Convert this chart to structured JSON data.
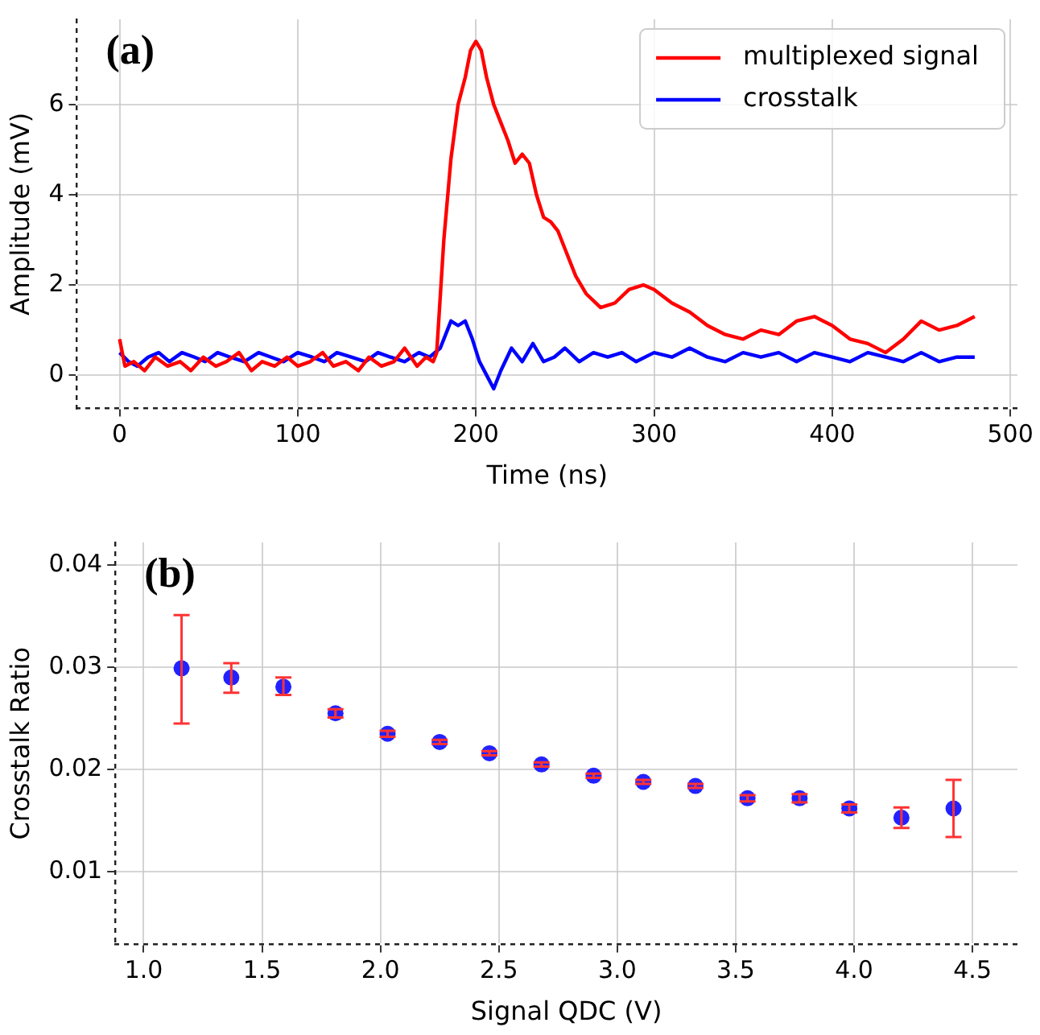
{
  "chart_data": [
    {
      "type": "line",
      "xlabel": "Time (ns)",
      "ylabel": "Amplitude (mV)",
      "annotations": [
        "(a)"
      ],
      "xlim": [
        -24,
        504
      ],
      "ylim": [
        -0.74,
        7.89
      ],
      "xticks": [
        0,
        100,
        200,
        300,
        400,
        500
      ],
      "yticks": [
        0,
        2,
        4,
        6
      ],
      "grid": true,
      "legend": "top right",
      "line_style": "solid",
      "series": [
        {
          "name": "multiplexed signal",
          "color": "#ff0000",
          "x": [
            0,
            3,
            8,
            14,
            20,
            27,
            34,
            40,
            47,
            54,
            60,
            67,
            74,
            80,
            87,
            94,
            100,
            107,
            114,
            120,
            127,
            134,
            140,
            147,
            154,
            160,
            167,
            172,
            176,
            178,
            182,
            186,
            190,
            194,
            197,
            200,
            203,
            206,
            210,
            214,
            218,
            222,
            226,
            230,
            234,
            238,
            242,
            246,
            250,
            256,
            262,
            270,
            278,
            286,
            294,
            300,
            310,
            320,
            330,
            340,
            350,
            360,
            370,
            380,
            390,
            400,
            410,
            420,
            430,
            440,
            450,
            460,
            470,
            480
          ],
          "values": [
            0.8,
            0.2,
            0.3,
            0.1,
            0.4,
            0.2,
            0.3,
            0.1,
            0.4,
            0.2,
            0.3,
            0.5,
            0.1,
            0.3,
            0.2,
            0.4,
            0.2,
            0.3,
            0.5,
            0.2,
            0.3,
            0.1,
            0.4,
            0.2,
            0.3,
            0.6,
            0.2,
            0.4,
            0.3,
            0.5,
            3.0,
            4.8,
            6.0,
            6.6,
            7.2,
            7.4,
            7.2,
            6.6,
            6.0,
            5.6,
            5.2,
            4.7,
            4.9,
            4.7,
            4.0,
            3.5,
            3.4,
            3.2,
            2.8,
            2.2,
            1.8,
            1.5,
            1.6,
            1.9,
            2.0,
            1.9,
            1.6,
            1.4,
            1.1,
            0.9,
            0.8,
            1.0,
            0.9,
            1.2,
            1.3,
            1.1,
            0.8,
            0.7,
            0.5,
            0.8,
            1.2,
            1.0,
            1.1,
            1.3
          ]
        },
        {
          "name": "crosstalk",
          "color": "#0000ff",
          "x": [
            0,
            5,
            10,
            16,
            22,
            28,
            35,
            42,
            48,
            55,
            62,
            70,
            78,
            85,
            92,
            100,
            108,
            115,
            122,
            130,
            138,
            145,
            152,
            160,
            168,
            174,
            180,
            186,
            190,
            194,
            198,
            202,
            206,
            210,
            214,
            220,
            226,
            232,
            238,
            244,
            250,
            258,
            266,
            274,
            282,
            290,
            300,
            310,
            320,
            330,
            340,
            350,
            360,
            370,
            380,
            390,
            400,
            410,
            420,
            430,
            440,
            450,
            460,
            470,
            480
          ],
          "values": [
            0.5,
            0.3,
            0.2,
            0.4,
            0.5,
            0.3,
            0.5,
            0.4,
            0.3,
            0.5,
            0.4,
            0.3,
            0.5,
            0.4,
            0.3,
            0.5,
            0.4,
            0.3,
            0.5,
            0.4,
            0.3,
            0.5,
            0.4,
            0.3,
            0.5,
            0.4,
            0.6,
            1.2,
            1.1,
            1.2,
            0.8,
            0.3,
            0.0,
            -0.3,
            0.1,
            0.6,
            0.3,
            0.7,
            0.3,
            0.4,
            0.6,
            0.3,
            0.5,
            0.4,
            0.5,
            0.3,
            0.5,
            0.4,
            0.6,
            0.4,
            0.3,
            0.5,
            0.4,
            0.5,
            0.3,
            0.5,
            0.4,
            0.3,
            0.5,
            0.4,
            0.3,
            0.5,
            0.3,
            0.4,
            0.4
          ]
        }
      ]
    },
    {
      "type": "scatter",
      "xlabel": "Signal QDC (V)",
      "ylabel": "Crosstalk Ratio",
      "annotations": [
        "(b)"
      ],
      "xlim": [
        0.88,
        4.69
      ],
      "ylim": [
        0.0029,
        0.0422
      ],
      "xticks": [
        {
          "value": 1,
          "label": "1.0"
        },
        {
          "value": 1.5,
          "label": "1.5"
        },
        {
          "value": 2,
          "label": "2.0"
        },
        {
          "value": 2.5,
          "label": "2.5"
        },
        {
          "value": 3,
          "label": "3.0"
        },
        {
          "value": 3.5,
          "label": "3.5"
        },
        {
          "value": 4,
          "label": "4.0"
        },
        {
          "value": 4.5,
          "label": "4.5"
        }
      ],
      "yticks": [
        0.01,
        0.02,
        0.03,
        0.04
      ],
      "grid": true,
      "marker": "circle",
      "series": [
        {
          "color": "#2222ff",
          "x": [
            1.16,
            1.37,
            1.59,
            1.81,
            2.03,
            2.25,
            2.46,
            2.68,
            2.9,
            3.11,
            3.33,
            3.55,
            3.77,
            3.98,
            4.2,
            4.42
          ],
          "values": [
            0.0299,
            0.029,
            0.0281,
            0.0255,
            0.0235,
            0.0227,
            0.0216,
            0.0205,
            0.0194,
            0.0188,
            0.0184,
            0.0172,
            0.0172,
            0.0162,
            0.0153,
            0.0162
          ],
          "errors": [
            [
              0.0245,
              0.0351
            ],
            [
              0.0275,
              0.0304
            ],
            [
              0.0273,
              0.029
            ],
            0.0004,
            0.0003,
            0.0002,
            0.0002,
            0.0002,
            0.0002,
            0.0002,
            0.0002,
            0.0003,
            0.0004,
            0.0004,
            [
              0.0143,
              0.0163
            ],
            [
              0.0134,
              0.019
            ]
          ]
        }
      ]
    }
  ]
}
